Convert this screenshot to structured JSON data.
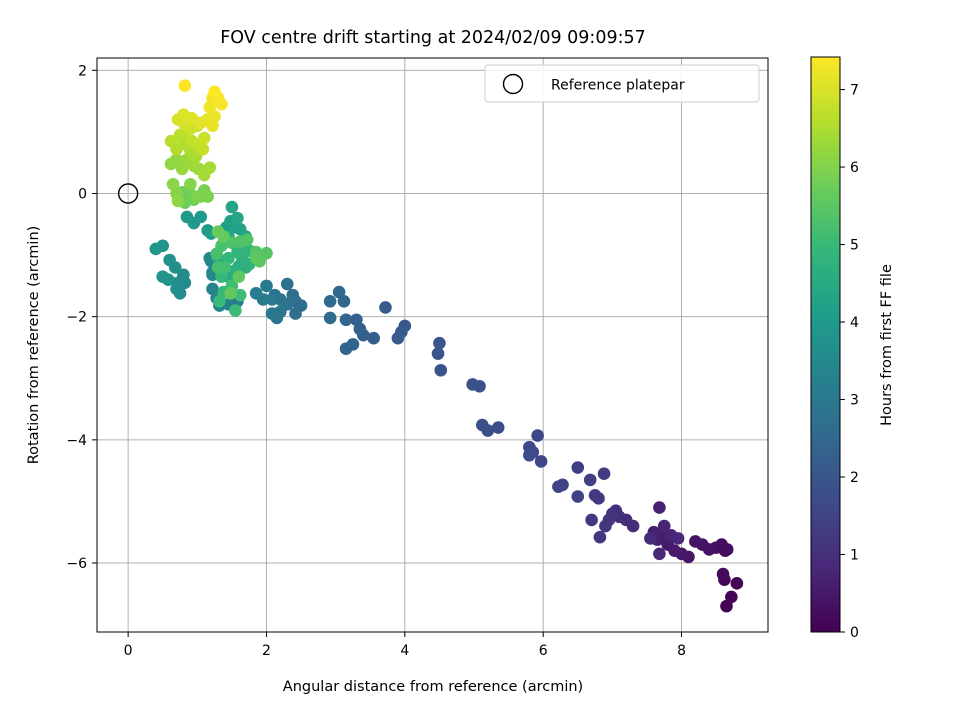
{
  "chart_data": {
    "type": "scatter",
    "title": "FOV centre drift starting at 2024/02/09 09:09:57",
    "xlabel": "Angular distance from reference (arcmin)",
    "ylabel": "Rotation from reference (arcmin)",
    "xlim": [
      -0.45,
      9.25
    ],
    "ylim": [
      -7.12,
      2.2
    ],
    "xticks": [
      0,
      2,
      4,
      6,
      8
    ],
    "xtick_labels": [
      "0",
      "2",
      "4",
      "6",
      "8"
    ],
    "yticks": [
      -6,
      -4,
      -2,
      0,
      2
    ],
    "ytick_labels": [
      "−6",
      "−4",
      "−2",
      "0",
      "2"
    ],
    "grid": true,
    "legend": {
      "placement": "top-right",
      "entries": [
        {
          "label": "Reference platepar",
          "marker": "open-circle"
        }
      ]
    },
    "reference_point": {
      "x": 0,
      "y": 0
    },
    "colorbar": {
      "label": "Hours from first FF file",
      "colormap": "viridis",
      "range": [
        0,
        7.42
      ],
      "ticks": [
        0,
        1,
        2,
        3,
        4,
        5,
        6,
        7
      ],
      "tick_labels": [
        "0",
        "1",
        "2",
        "3",
        "4",
        "5",
        "6",
        "7"
      ],
      "stops": [
        "#440154",
        "#482878",
        "#3e4989",
        "#31688e",
        "#26828e",
        "#1f9e89",
        "#35b779",
        "#6ece58",
        "#b5de2b",
        "#fde725"
      ]
    },
    "series": [
      {
        "points": [
          [
            8.65,
            -6.7
          ],
          [
            8.72,
            -6.55
          ],
          [
            8.8,
            -6.33
          ],
          [
            8.62,
            -6.27
          ],
          [
            8.6,
            -6.18
          ],
          [
            8.63,
            -5.8
          ],
          [
            8.58,
            -5.7
          ],
          [
            8.66,
            -5.78
          ],
          [
            8.5,
            -5.75
          ],
          [
            8.4,
            -5.78
          ],
          [
            8.3,
            -5.7
          ],
          [
            8.2,
            -5.65
          ],
          [
            8.1,
            -5.9
          ],
          [
            8.0,
            -5.85
          ],
          [
            7.9,
            -5.8
          ],
          [
            7.8,
            -5.7
          ],
          [
            7.72,
            -5.55
          ],
          [
            7.65,
            -5.62
          ],
          [
            7.6,
            -5.5
          ],
          [
            7.68,
            -5.1
          ],
          [
            7.75,
            -5.4
          ],
          [
            7.85,
            -5.55
          ],
          [
            7.95,
            -5.6
          ],
          [
            7.68,
            -5.85
          ],
          [
            7.55,
            -5.6
          ],
          [
            7.3,
            -5.4
          ],
          [
            7.2,
            -5.3
          ],
          [
            7.1,
            -5.25
          ],
          [
            7.0,
            -5.2
          ],
          [
            7.05,
            -5.15
          ],
          [
            6.95,
            -5.3
          ],
          [
            6.9,
            -5.4
          ],
          [
            6.82,
            -5.58
          ],
          [
            6.7,
            -5.3
          ],
          [
            6.8,
            -4.95
          ],
          [
            6.75,
            -4.9
          ],
          [
            6.88,
            -4.55
          ],
          [
            6.68,
            -4.65
          ],
          [
            6.5,
            -4.45
          ],
          [
            6.5,
            -4.92
          ],
          [
            6.28,
            -4.73
          ],
          [
            6.22,
            -4.76
          ],
          [
            5.97,
            -4.35
          ],
          [
            5.92,
            -3.93
          ],
          [
            5.85,
            -4.2
          ],
          [
            5.8,
            -4.12
          ],
          [
            5.8,
            -4.25
          ],
          [
            5.35,
            -3.8
          ],
          [
            5.2,
            -3.85
          ],
          [
            5.12,
            -3.76
          ],
          [
            5.08,
            -3.13
          ],
          [
            4.98,
            -3.1
          ],
          [
            4.52,
            -2.87
          ],
          [
            4.5,
            -2.43
          ],
          [
            4.48,
            -2.6
          ],
          [
            4.0,
            -2.15
          ],
          [
            3.95,
            -2.25
          ],
          [
            3.9,
            -2.35
          ],
          [
            3.72,
            -1.85
          ],
          [
            3.55,
            -2.35
          ],
          [
            3.4,
            -2.3
          ],
          [
            3.35,
            -2.2
          ],
          [
            3.3,
            -2.05
          ],
          [
            3.25,
            -2.45
          ],
          [
            3.15,
            -2.52
          ],
          [
            3.15,
            -2.05
          ],
          [
            3.12,
            -1.75
          ],
          [
            3.05,
            -1.6
          ],
          [
            2.92,
            -1.75
          ],
          [
            2.92,
            -2.02
          ],
          [
            2.5,
            -1.82
          ],
          [
            2.42,
            -1.75
          ],
          [
            2.38,
            -1.65
          ],
          [
            2.42,
            -1.95
          ],
          [
            2.3,
            -1.47
          ],
          [
            2.3,
            -1.8
          ],
          [
            2.2,
            -1.72
          ],
          [
            2.12,
            -1.65
          ],
          [
            2.2,
            -1.92
          ],
          [
            2.15,
            -2.02
          ],
          [
            2.08,
            -1.95
          ],
          [
            2.08,
            -1.72
          ],
          [
            2.0,
            -1.5
          ],
          [
            1.95,
            -1.72
          ],
          [
            1.85,
            -1.62
          ],
          [
            1.58,
            -1.75
          ],
          [
            1.58,
            -1.7
          ],
          [
            1.45,
            -1.8
          ],
          [
            1.32,
            -1.82
          ],
          [
            1.28,
            -1.7
          ],
          [
            1.22,
            -1.55
          ],
          [
            1.22,
            -1.28
          ],
          [
            1.2,
            -1.1
          ],
          [
            1.22,
            -1.32
          ],
          [
            1.18,
            -1.05
          ],
          [
            0.82,
            -1.45
          ],
          [
            0.8,
            -1.32
          ],
          [
            0.75,
            -1.62
          ],
          [
            0.72,
            -1.45
          ],
          [
            0.7,
            -1.55
          ],
          [
            0.68,
            -1.2
          ],
          [
            0.6,
            -1.08
          ],
          [
            0.58,
            -1.4
          ],
          [
            0.5,
            -1.35
          ],
          [
            0.5,
            -0.85
          ],
          [
            0.4,
            -0.9
          ],
          [
            0.85,
            -0.38
          ],
          [
            0.95,
            -0.48
          ],
          [
            1.05,
            -0.38
          ],
          [
            1.15,
            -0.6
          ],
          [
            1.2,
            -0.65
          ],
          [
            1.32,
            -0.62
          ],
          [
            1.42,
            -0.55
          ],
          [
            1.48,
            -0.45
          ],
          [
            1.55,
            -0.55
          ],
          [
            1.62,
            -0.58
          ],
          [
            1.7,
            -0.7
          ],
          [
            1.5,
            -0.22
          ],
          [
            1.58,
            -0.4
          ],
          [
            1.45,
            -0.7
          ],
          [
            1.3,
            -1.05
          ],
          [
            1.35,
            -1.1
          ],
          [
            1.4,
            -1.25
          ],
          [
            1.45,
            -1.35
          ],
          [
            1.55,
            -1.25
          ],
          [
            1.6,
            -1.18
          ],
          [
            1.65,
            -1.05
          ],
          [
            1.7,
            -1.2
          ],
          [
            1.75,
            -1.15
          ],
          [
            1.8,
            -0.95
          ],
          [
            1.72,
            -0.9
          ],
          [
            1.58,
            -0.95
          ],
          [
            1.45,
            -1.05
          ],
          [
            1.35,
            -1.35
          ],
          [
            1.38,
            -1.6
          ],
          [
            1.32,
            -1.75
          ],
          [
            1.55,
            -1.9
          ],
          [
            1.62,
            -1.65
          ],
          [
            1.5,
            -1.5
          ],
          [
            1.4,
            -1.2
          ],
          [
            1.3,
            -1.2
          ],
          [
            1.28,
            -0.98
          ],
          [
            1.35,
            -0.85
          ],
          [
            1.5,
            -0.8
          ],
          [
            1.62,
            -0.78
          ],
          [
            1.72,
            -0.75
          ],
          [
            1.85,
            -0.95
          ],
          [
            2.0,
            -0.97
          ],
          [
            1.9,
            -1.1
          ],
          [
            1.85,
            -1.05
          ],
          [
            1.6,
            -1.35
          ],
          [
            1.48,
            -1.62
          ],
          [
            1.38,
            -0.7
          ],
          [
            1.3,
            -0.62
          ],
          [
            0.78,
            0.02
          ],
          [
            0.82,
            -0.15
          ],
          [
            0.88,
            0.02
          ],
          [
            0.95,
            -0.1
          ],
          [
            1.05,
            -0.05
          ],
          [
            1.1,
            0.05
          ],
          [
            1.15,
            -0.05
          ],
          [
            1.0,
            -0.05
          ],
          [
            0.9,
            0.15
          ],
          [
            0.7,
            0.0
          ],
          [
            0.65,
            0.15
          ],
          [
            0.72,
            -0.12
          ],
          [
            0.62,
            0.48
          ],
          [
            0.7,
            0.55
          ],
          [
            0.78,
            0.4
          ],
          [
            0.85,
            0.55
          ],
          [
            0.95,
            0.45
          ],
          [
            1.02,
            0.4
          ],
          [
            1.1,
            0.3
          ],
          [
            1.18,
            0.42
          ],
          [
            0.98,
            0.6
          ],
          [
            0.9,
            0.7
          ],
          [
            0.8,
            0.8
          ],
          [
            0.7,
            0.72
          ],
          [
            0.62,
            0.85
          ],
          [
            0.75,
            0.95
          ],
          [
            0.85,
            1.0
          ],
          [
            0.92,
            0.85
          ],
          [
            1.0,
            0.8
          ],
          [
            1.08,
            0.72
          ],
          [
            1.1,
            0.9
          ],
          [
            1.0,
            1.1
          ],
          [
            0.9,
            1.05
          ],
          [
            0.82,
            1.12
          ],
          [
            0.72,
            1.2
          ],
          [
            0.8,
            1.28
          ],
          [
            0.92,
            1.22
          ],
          [
            1.05,
            1.15
          ],
          [
            1.15,
            1.2
          ],
          [
            1.22,
            1.1
          ],
          [
            1.25,
            1.25
          ],
          [
            1.18,
            1.4
          ],
          [
            1.22,
            1.55
          ],
          [
            1.3,
            1.55
          ],
          [
            1.35,
            1.45
          ],
          [
            1.25,
            1.65
          ],
          [
            0.82,
            1.75
          ]
        ]
      }
    ]
  }
}
